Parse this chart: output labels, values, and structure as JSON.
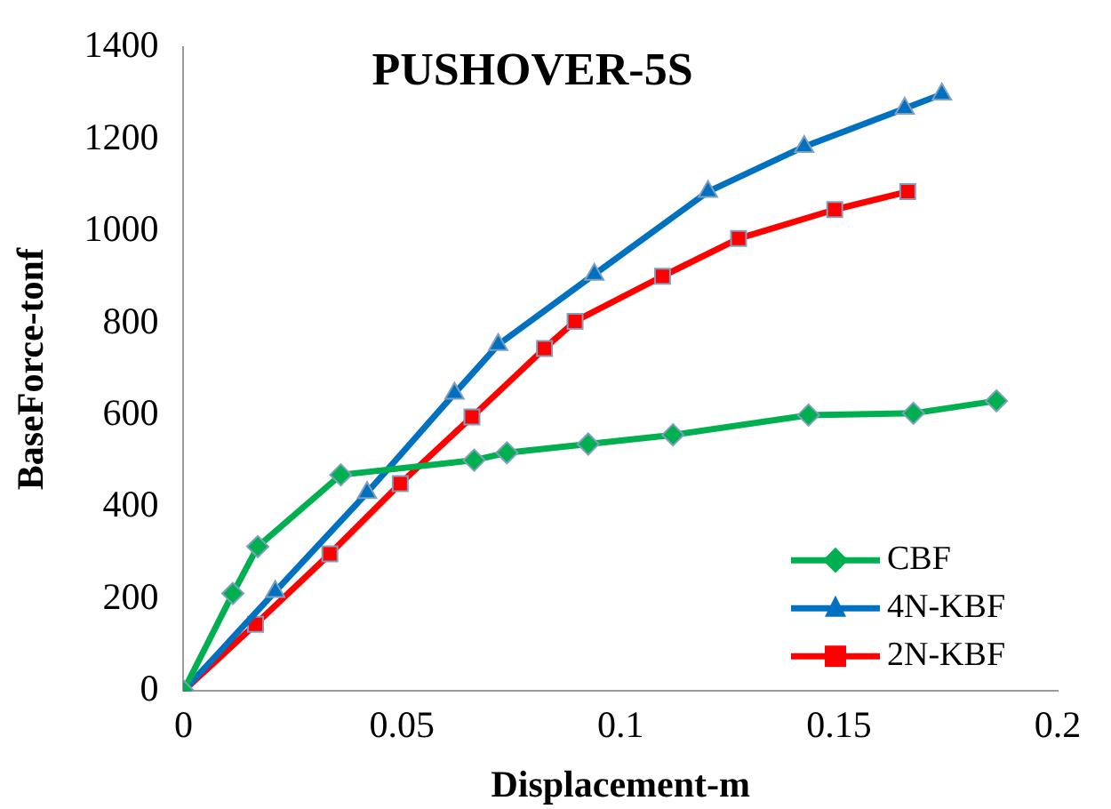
{
  "chart_data": {
    "type": "line",
    "title": "PUSHOVER-5S",
    "xlabel": "Displacement-m",
    "ylabel": "BaseForce-tonf",
    "xlim": [
      0,
      0.2
    ],
    "xticks": [
      0,
      0.05,
      0.1,
      0.15,
      0.2
    ],
    "ylim": [
      0,
      1400
    ],
    "yticks": [
      0,
      200,
      400,
      600,
      800,
      1000,
      1200,
      1400
    ],
    "grid": false,
    "legend": "bottom right",
    "series": [
      {
        "name": "CBF",
        "color": "#00b050",
        "marker": "diamond",
        "x": [
          0,
          0.0113,
          0.017,
          0.036,
          0.0665,
          0.074,
          0.0926,
          0.112,
          0.143,
          0.167,
          0.186
        ],
        "values": [
          0,
          212,
          314,
          470,
          502,
          518,
          537,
          557,
          600,
          604,
          631
        ]
      },
      {
        "name": "4N-KBF",
        "color": "#0070c0",
        "marker": "triangle",
        "x": [
          0,
          0.021,
          0.042,
          0.062,
          0.072,
          0.094,
          0.12,
          0.142,
          0.165,
          0.1735
        ],
        "values": [
          0,
          216,
          431,
          647,
          753,
          906,
          1086,
          1184,
          1267,
          1298
        ]
      },
      {
        "name": "2N-KBF",
        "color": "#ff0000",
        "marker": "square",
        "x": [
          0,
          0.0165,
          0.0335,
          0.0496,
          0.066,
          0.0826,
          0.0896,
          0.1096,
          0.127,
          0.149,
          0.1657
        ],
        "values": [
          0,
          145,
          298,
          451,
          596,
          745,
          804,
          902,
          984,
          1047,
          1086
        ]
      }
    ]
  }
}
